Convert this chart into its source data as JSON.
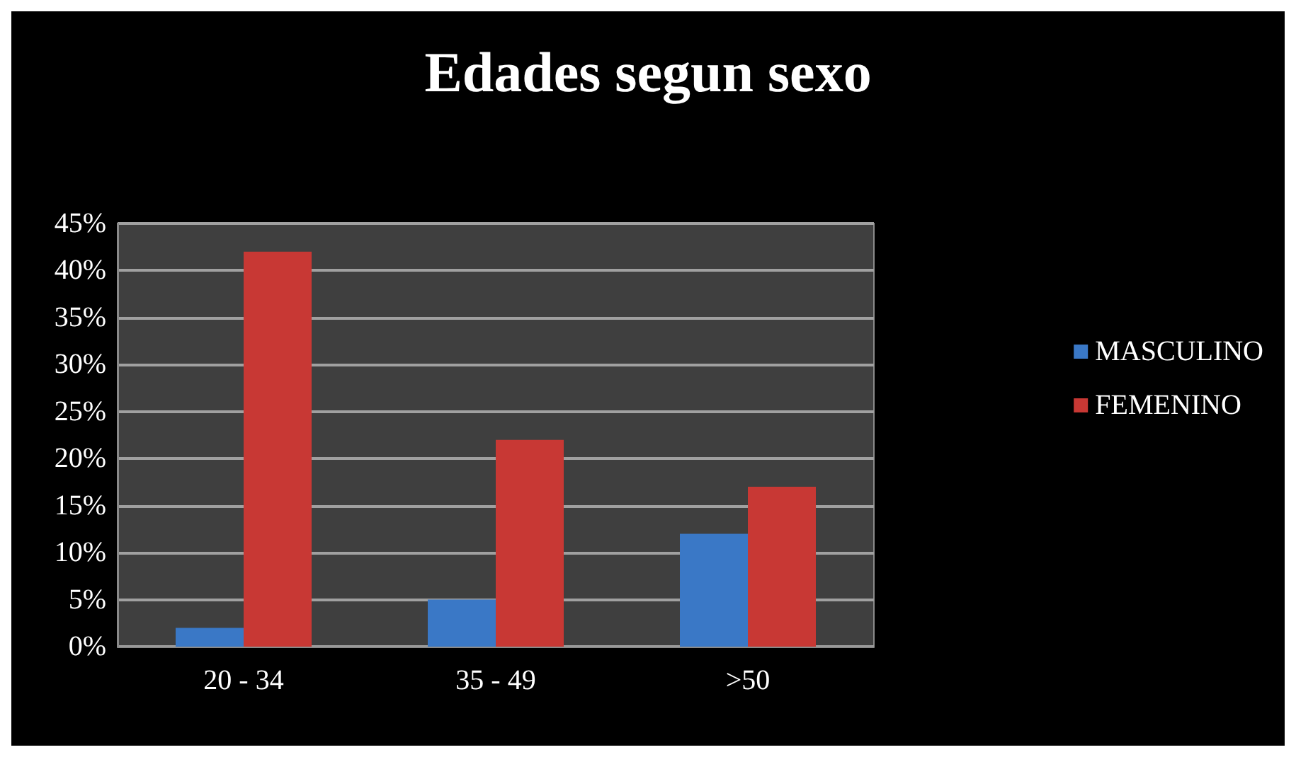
{
  "chart_data": {
    "type": "bar",
    "title": "Edades segun sexo",
    "categories": [
      "20 - 34",
      "35 - 49",
      ">50"
    ],
    "series": [
      {
        "name": "MASCULINO",
        "color": "#3a78c6",
        "values": [
          2,
          5,
          12
        ]
      },
      {
        "name": "FEMENINO",
        "color": "#c83834",
        "values": [
          42,
          22,
          17
        ]
      }
    ],
    "ylim": [
      0,
      45
    ],
    "yticks": [
      {
        "value": 0,
        "label": "0%"
      },
      {
        "value": 5,
        "label": "5%"
      },
      {
        "value": 10,
        "label": "10%"
      },
      {
        "value": 15,
        "label": "15%"
      },
      {
        "value": 20,
        "label": "20%"
      },
      {
        "value": 25,
        "label": "25%"
      },
      {
        "value": 30,
        "label": "30%"
      },
      {
        "value": 35,
        "label": "35%"
      },
      {
        "value": 40,
        "label": "40%"
      },
      {
        "value": 45,
        "label": "45%"
      }
    ],
    "grid": "y",
    "legend": "right"
  }
}
